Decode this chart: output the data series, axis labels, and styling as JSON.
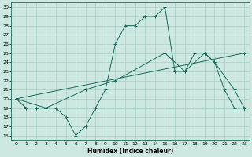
{
  "xlabel": "Humidex (Indice chaleur)",
  "bg_color": "#cce8e0",
  "grid_color": "#aacfc8",
  "line_color": "#1a6b5e",
  "xlim": [
    -0.5,
    23.5
  ],
  "ylim": [
    15.5,
    30.5
  ],
  "xticks": [
    0,
    1,
    2,
    3,
    4,
    5,
    6,
    7,
    8,
    9,
    10,
    11,
    12,
    13,
    14,
    15,
    16,
    17,
    18,
    19,
    20,
    21,
    22,
    23
  ],
  "yticks": [
    16,
    17,
    18,
    19,
    20,
    21,
    22,
    23,
    24,
    25,
    26,
    27,
    28,
    29,
    30
  ],
  "series": [
    {
      "x": [
        0,
        1,
        2,
        3,
        4,
        5,
        6,
        7,
        8,
        9,
        10,
        11,
        12,
        13,
        14,
        15,
        16,
        17,
        18,
        19,
        20,
        21,
        22,
        23
      ],
      "y": [
        20,
        19,
        19,
        19,
        19,
        18,
        16,
        17,
        19,
        21,
        26,
        28,
        28,
        29,
        29,
        30,
        23,
        23,
        25,
        25,
        24,
        21,
        19,
        19
      ]
    },
    {
      "x": [
        0,
        1,
        2,
        3,
        23
      ],
      "y": [
        20,
        19,
        19,
        19,
        19
      ]
    },
    {
      "x": [
        0,
        23
      ],
      "y": [
        20,
        25
      ]
    },
    {
      "x": [
        0,
        3,
        7,
        10,
        15,
        17,
        19,
        20,
        22,
        23
      ],
      "y": [
        20,
        19,
        21,
        22,
        25,
        23,
        25,
        24,
        21,
        19
      ]
    }
  ]
}
